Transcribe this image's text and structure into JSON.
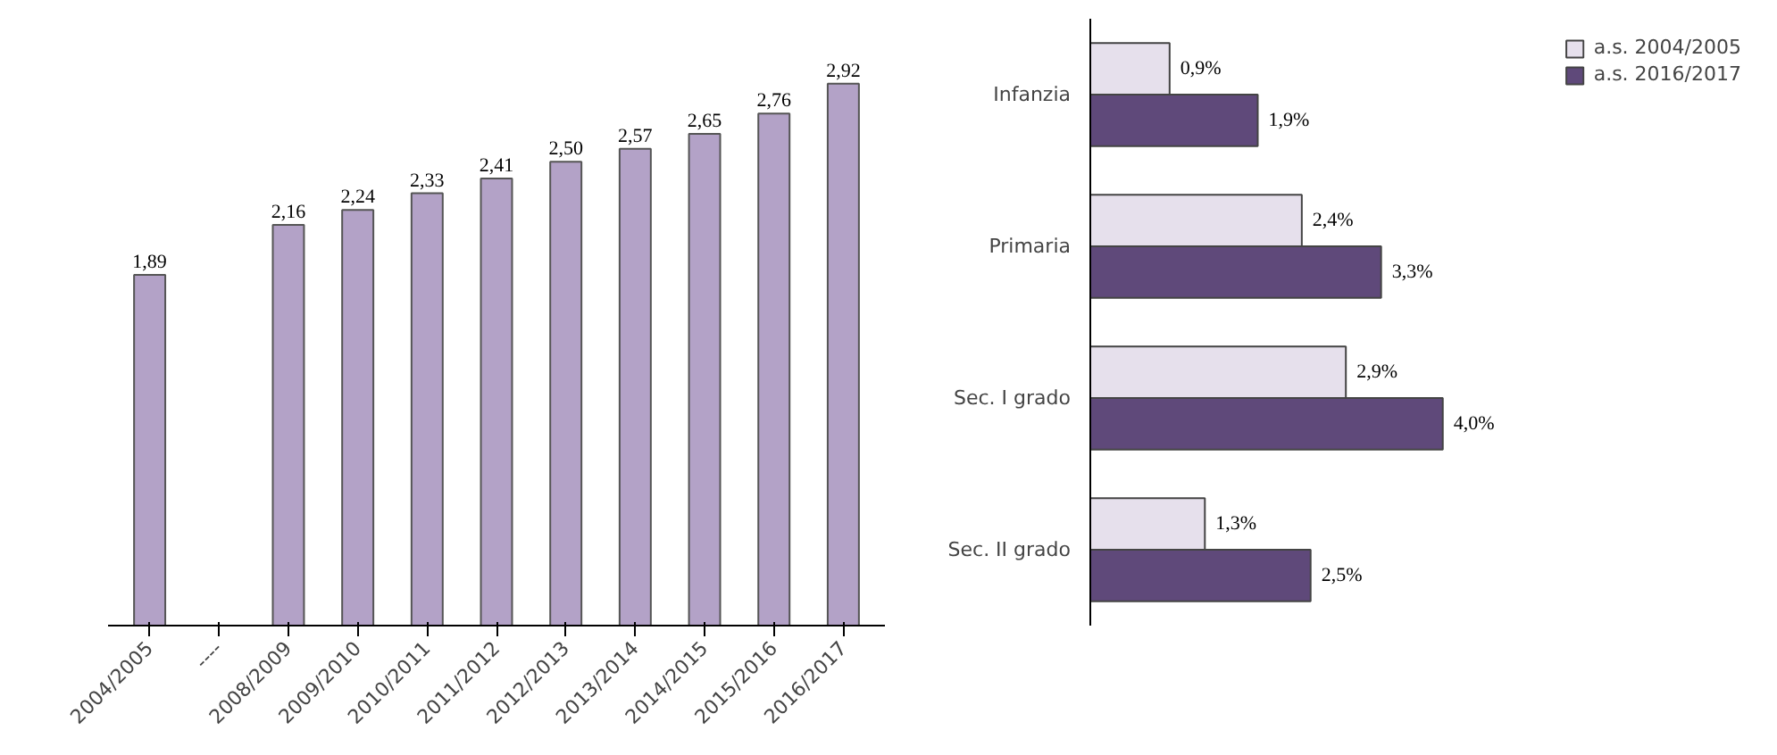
{
  "chart_data": [
    {
      "type": "bar",
      "categories": [
        "2004/2005",
        "----",
        "2008/2009",
        "2009/2010",
        "2010/2011",
        "2011/2012",
        "2012/2013",
        "2013/2014",
        "2014/2015",
        "2015/2016",
        "2016/2017"
      ],
      "values": [
        1.89,
        null,
        2.16,
        2.24,
        2.33,
        2.41,
        2.5,
        2.57,
        2.65,
        2.76,
        2.92
      ],
      "value_labels": [
        "1,89",
        null,
        "2,16",
        "2,24",
        "2,33",
        "2,41",
        "2,50",
        "2,57",
        "2,65",
        "2,76",
        "2,92"
      ],
      "color": "#b3a2c7"
    },
    {
      "type": "bar",
      "orientation": "horizontal",
      "categories": [
        "Infanzia",
        "Primaria",
        "Sec. I grado",
        "Sec. II grado"
      ],
      "legend": "top right",
      "series": [
        {
          "name": "a.s. 2004/2005",
          "color": "#e6e0ec",
          "values": [
            0.9,
            2.4,
            2.9,
            1.3
          ],
          "value_labels": [
            "0,9%",
            "2,4%",
            "2,9%",
            "1,3%"
          ]
        },
        {
          "name": "a.s. 2016/2017",
          "color": "#5f497a",
          "values": [
            1.9,
            3.3,
            4.0,
            2.5
          ],
          "value_labels": [
            "1,9%",
            "3,3%",
            "4,0%",
            "2,5%"
          ]
        }
      ]
    }
  ]
}
